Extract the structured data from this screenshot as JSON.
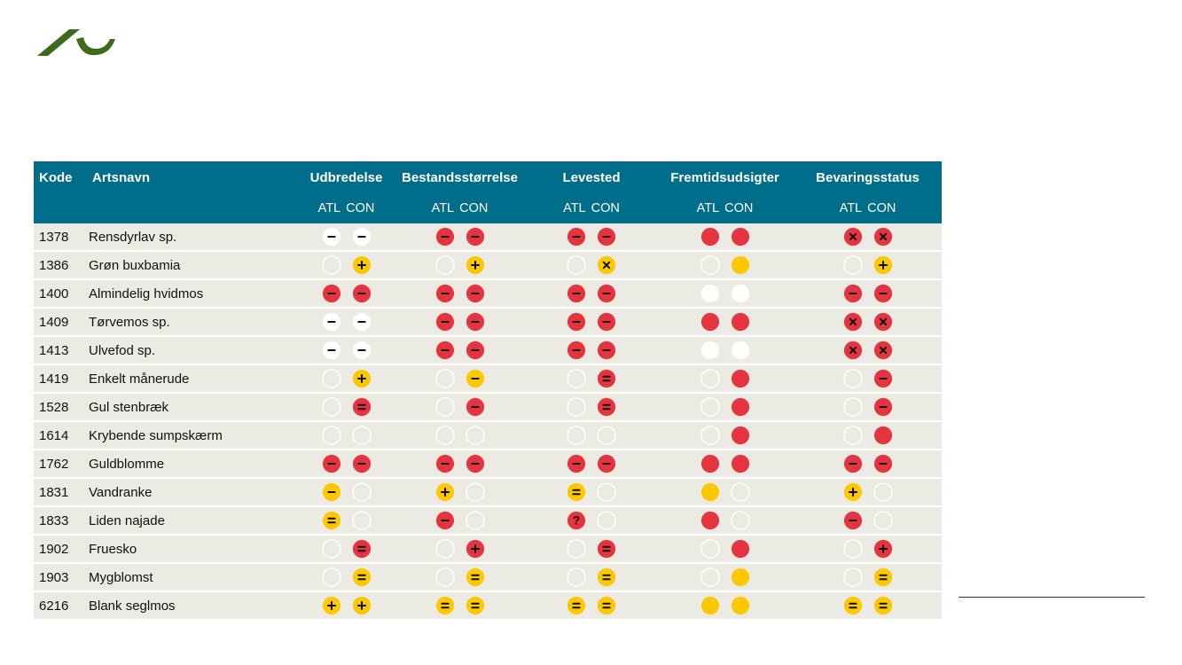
{
  "logo": {
    "icon": "university-wave-logo",
    "color": "#3d6b1e"
  },
  "colors": {
    "header": "#006d8a",
    "row": "#ebeae3",
    "red": "#e4343f",
    "yellow": "#fcc800",
    "neutral_border": "#ffffff"
  },
  "table": {
    "headers": {
      "kode": "Kode",
      "artsnavn": "Artsnavn",
      "groups": [
        "Udbredelse",
        "Bestandsstørrelse",
        "Levested",
        "Fremtidsudsigter",
        "Bevaringsstatus"
      ],
      "atl": "ATL",
      "con": "CON"
    },
    "rows": [
      {
        "kode": "1378",
        "navn": "Rensdyrlav sp.",
        "cells": [
          [
            "w-minus",
            "w-minus"
          ],
          [
            "r-minus",
            "r-minus"
          ],
          [
            "r-minus",
            "r-minus"
          ],
          [
            "r-solid",
            "r-solid"
          ],
          [
            "r-x",
            "r-x"
          ]
        ]
      },
      {
        "kode": "1386",
        "navn": "Grøn buxbamia",
        "cells": [
          [
            "empty",
            "y-plus"
          ],
          [
            "empty",
            "y-plus"
          ],
          [
            "empty",
            "y-x"
          ],
          [
            "empty",
            "y-solid"
          ],
          [
            "empty",
            "y-plus"
          ]
        ]
      },
      {
        "kode": "1400",
        "navn": "Almindelig hvidmos",
        "cells": [
          [
            "r-minus",
            "r-minus"
          ],
          [
            "r-minus",
            "r-minus"
          ],
          [
            "r-minus",
            "r-minus"
          ],
          [
            "w-solid",
            "w-solid"
          ],
          [
            "r-minus",
            "r-minus"
          ]
        ]
      },
      {
        "kode": "1409",
        "navn": "Tørvemos sp.",
        "cells": [
          [
            "w-minus",
            "w-minus"
          ],
          [
            "r-minus",
            "r-minus"
          ],
          [
            "r-minus",
            "r-minus"
          ],
          [
            "r-solid",
            "r-solid"
          ],
          [
            "r-x",
            "r-x"
          ]
        ]
      },
      {
        "kode": "1413",
        "navn": "Ulvefod sp.",
        "cells": [
          [
            "w-minus",
            "w-minus"
          ],
          [
            "r-minus",
            "r-minus"
          ],
          [
            "r-minus",
            "r-minus"
          ],
          [
            "w-solid",
            "w-solid"
          ],
          [
            "r-x",
            "r-x"
          ]
        ]
      },
      {
        "kode": "1419",
        "navn": "Enkelt månerude",
        "cells": [
          [
            "empty",
            "y-plus"
          ],
          [
            "empty",
            "y-minus"
          ],
          [
            "empty",
            "r-eq"
          ],
          [
            "empty",
            "r-solid"
          ],
          [
            "empty",
            "r-minus"
          ]
        ]
      },
      {
        "kode": "1528",
        "navn": "Gul stenbræk",
        "cells": [
          [
            "empty",
            "r-eq"
          ],
          [
            "empty",
            "r-minus"
          ],
          [
            "empty",
            "r-eq"
          ],
          [
            "empty",
            "r-solid"
          ],
          [
            "empty",
            "r-minus"
          ]
        ]
      },
      {
        "kode": "1614",
        "navn": "Krybende sumpskærm",
        "cells": [
          [
            "empty",
            "empty"
          ],
          [
            "empty",
            "empty"
          ],
          [
            "empty",
            "empty"
          ],
          [
            "empty",
            "r-solid"
          ],
          [
            "empty",
            "r-solid"
          ]
        ]
      },
      {
        "kode": "1762",
        "navn": "Guldblomme",
        "cells": [
          [
            "r-minus",
            "r-minus"
          ],
          [
            "r-minus",
            "r-minus"
          ],
          [
            "r-minus",
            "r-minus"
          ],
          [
            "r-solid",
            "r-solid"
          ],
          [
            "r-minus",
            "r-minus"
          ]
        ]
      },
      {
        "kode": "1831",
        "navn": "Vandranke",
        "cells": [
          [
            "y-minus",
            "empty"
          ],
          [
            "y-plus",
            "empty"
          ],
          [
            "y-eq",
            "empty"
          ],
          [
            "y-solid",
            "empty"
          ],
          [
            "y-plus",
            "empty"
          ]
        ]
      },
      {
        "kode": "1833",
        "navn": "Liden najade",
        "cells": [
          [
            "y-eq",
            "empty"
          ],
          [
            "r-minus",
            "empty"
          ],
          [
            "r-q",
            "empty"
          ],
          [
            "r-solid",
            "empty"
          ],
          [
            "r-minus",
            "empty"
          ]
        ]
      },
      {
        "kode": "1902",
        "navn": "Fruesko",
        "cells": [
          [
            "empty",
            "r-eq"
          ],
          [
            "empty",
            "r-plus"
          ],
          [
            "empty",
            "r-eq"
          ],
          [
            "empty",
            "r-solid"
          ],
          [
            "empty",
            "r-plus"
          ]
        ]
      },
      {
        "kode": "1903",
        "navn": "Mygblomst",
        "cells": [
          [
            "empty",
            "y-eq"
          ],
          [
            "empty",
            "y-eq"
          ],
          [
            "empty",
            "y-eq"
          ],
          [
            "empty",
            "y-solid"
          ],
          [
            "empty",
            "y-eq"
          ]
        ]
      },
      {
        "kode": "6216",
        "navn": "Blank seglmos",
        "cells": [
          [
            "y-plus",
            "y-plus"
          ],
          [
            "y-eq",
            "y-eq"
          ],
          [
            "y-eq",
            "y-eq"
          ],
          [
            "y-solid",
            "y-solid"
          ],
          [
            "y-eq",
            "y-eq"
          ]
        ]
      }
    ]
  }
}
